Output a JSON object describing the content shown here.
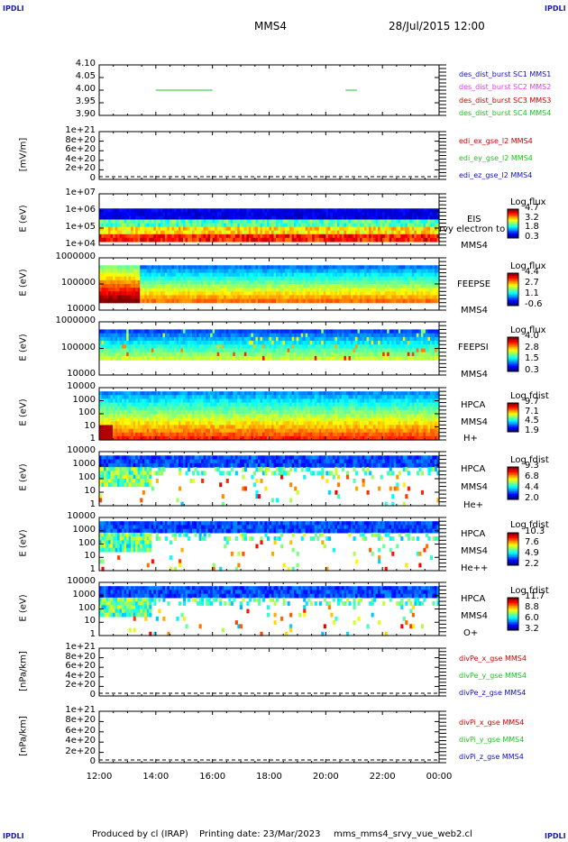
{
  "corner_label": "IPDLI",
  "header": {
    "title": "MMS4",
    "datetime": "28/Jul/2015 12:00"
  },
  "footer": {
    "produced_by": "Produced by cl (IRAP)",
    "printing_date": "Printing date: 23/Mar/2023",
    "file": "mms_mms4_srvy_vue_web2.cl"
  },
  "colors": {
    "red": "#d00000",
    "magenta": "#e040e0",
    "green": "#20c020",
    "blue": "#1010c0"
  },
  "chart_data": [
    {
      "type": "line",
      "panel": "des_dist_burst",
      "ylim": [
        3.9,
        4.1
      ],
      "yticks": [
        "4.10",
        "4.05",
        "4.00",
        "3.95",
        "3.90"
      ],
      "series": [
        {
          "name": "des_dist_burst SC1 MMS1",
          "color": "blue",
          "segments": []
        },
        {
          "name": "des_dist_burst SC2 MMS2",
          "color": "magenta",
          "segments": []
        },
        {
          "name": "des_dist_burst SC3 MMS3",
          "color": "red",
          "segments": []
        },
        {
          "name": "des_dist_burst SC4 MMS4",
          "color": "green",
          "segments": [
            [
              14.0,
              16.0,
              4.0
            ],
            [
              20.7,
              21.1,
              4.0
            ]
          ]
        }
      ]
    },
    {
      "type": "line",
      "panel": "edi",
      "ylabel": "[mV/m]",
      "yticks": [
        "1e+21",
        "8e+20",
        "6e+20",
        "4e+20",
        "2e+20",
        "0"
      ],
      "series": [
        {
          "name": "edi_ex_gse_l2 MMS4",
          "color": "red"
        },
        {
          "name": "edi_ey_gse_l2 MMS4",
          "color": "green"
        },
        {
          "name": "edi_ez_gse_l2 MMS4",
          "color": "blue"
        }
      ]
    },
    {
      "type": "heatmap",
      "panel": "eis",
      "ylabel": "E (eV)",
      "yticks": [
        "1e+07",
        "1e+06",
        "1e+05",
        "1e+04"
      ],
      "side_labels": [
        "EIS",
        "MMS4"
      ],
      "overflow_label": "rvy electron to",
      "colorbar": {
        "label": "Log flux",
        "ticks": [
          "4.7",
          "3.2",
          "1.8",
          "0.3"
        ]
      }
    },
    {
      "type": "heatmap",
      "panel": "feeps_e",
      "ylabel": "E (eV)",
      "yticks": [
        "1000000",
        "100000",
        "10000"
      ],
      "side_labels": [
        "FEEPSE",
        "MMS4"
      ],
      "colorbar": {
        "label": "Log flux",
        "ticks": [
          "4.4",
          "2.7",
          "1.1",
          "-0.6"
        ]
      }
    },
    {
      "type": "heatmap",
      "panel": "feeps_i",
      "ylabel": "E (eV)",
      "yticks": [
        "1000000",
        "100000",
        "10000"
      ],
      "side_labels": [
        "FEEPSI",
        "MMS4"
      ],
      "colorbar": {
        "label": "Log flux",
        "ticks": [
          "4.0",
          "2.8",
          "1.5",
          "0.3"
        ]
      }
    },
    {
      "type": "heatmap",
      "panel": "hpca_h",
      "ylabel": "E (eV)",
      "yticks": [
        "10000",
        "1000",
        "100",
        "10",
        "1"
      ],
      "side_labels": [
        "HPCA",
        "MMS4",
        "H+"
      ],
      "colorbar": {
        "label": "Log fdist",
        "ticks": [
          "9.7",
          "7.1",
          "4.5",
          "1.9"
        ]
      }
    },
    {
      "type": "heatmap",
      "panel": "hpca_he",
      "ylabel": "E (eV)",
      "yticks": [
        "10000",
        "1000",
        "100",
        "10",
        "1"
      ],
      "side_labels": [
        "HPCA",
        "MMS4",
        "He+"
      ],
      "colorbar": {
        "label": "Log fdist",
        "ticks": [
          "9.3",
          "6.8",
          "4.4",
          "2.0"
        ]
      }
    },
    {
      "type": "heatmap",
      "panel": "hpca_hepp",
      "ylabel": "E (eV)",
      "yticks": [
        "10000",
        "1000",
        "100",
        "10",
        "1"
      ],
      "side_labels": [
        "HPCA",
        "MMS4",
        "He++"
      ],
      "colorbar": {
        "label": "Log fdist",
        "ticks": [
          "10.3",
          "7.6",
          "4.9",
          "2.2"
        ]
      }
    },
    {
      "type": "heatmap",
      "panel": "hpca_o",
      "ylabel": "E (eV)",
      "yticks": [
        "10000",
        "1000",
        "100",
        "10",
        "1"
      ],
      "side_labels": [
        "HPCA",
        "MMS4",
        "O+"
      ],
      "colorbar": {
        "label": "Log fdist",
        "ticks": [
          "11.7",
          "8.8",
          "6.0",
          "3.2"
        ]
      }
    },
    {
      "type": "line",
      "panel": "divpe",
      "ylabel": "[nPa/km]",
      "yticks": [
        "1e+21",
        "8e+20",
        "6e+20",
        "4e+20",
        "2e+20",
        "0"
      ],
      "series": [
        {
          "name": "divPe_x_gse MMS4",
          "color": "red"
        },
        {
          "name": "divPe_y_gse MMS4",
          "color": "green"
        },
        {
          "name": "divPe_z_gse MMS4",
          "color": "blue"
        }
      ]
    },
    {
      "type": "line",
      "panel": "divpi",
      "ylabel": "[nPa/km]",
      "yticks": [
        "1e+21",
        "8e+20",
        "6e+20",
        "4e+20",
        "2e+20",
        "0"
      ],
      "series": [
        {
          "name": "divPi_x_gse MMS4",
          "color": "red"
        },
        {
          "name": "divPi_y_gse MMS4",
          "color": "green"
        },
        {
          "name": "divPi_z_gse MMS4",
          "color": "blue"
        }
      ]
    }
  ],
  "xaxis": {
    "xlim": [
      12,
      24
    ],
    "ticks": [
      "12:00",
      "14:00",
      "16:00",
      "18:00",
      "20:00",
      "22:00",
      "00:00"
    ]
  }
}
